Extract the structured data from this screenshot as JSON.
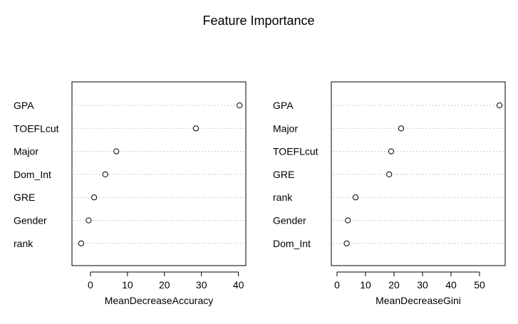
{
  "chart_data": {
    "title": "Feature Importance",
    "charts": [
      {
        "type": "scatter",
        "subtype": "dotchart",
        "xlabel": "MeanDecreaseAccuracy",
        "xlim": [
          -5,
          42
        ],
        "xticks": [
          0,
          10,
          20,
          30,
          40
        ],
        "tick_labels": [
          "0",
          "10",
          "20",
          "30",
          "40"
        ],
        "features": [
          "GPA",
          "TOEFLcut",
          "Major",
          "Dom_Int",
          "GRE",
          "Gender",
          "rank"
        ],
        "values": [
          40.3,
          28.5,
          7.0,
          4.0,
          1.0,
          -0.5,
          -2.5
        ]
      },
      {
        "type": "scatter",
        "subtype": "dotchart",
        "xlabel": "MeanDecreaseGini",
        "xlim": [
          -2,
          59
        ],
        "xticks": [
          0,
          10,
          20,
          30,
          40,
          50
        ],
        "tick_labels": [
          "0",
          "10",
          "20",
          "30",
          "40",
          "50"
        ],
        "features": [
          "GPA",
          "Major",
          "TOEFLcut",
          "GRE",
          "rank",
          "Gender",
          "Dom_Int"
        ],
        "values": [
          57.0,
          22.5,
          19.0,
          18.3,
          6.5,
          3.8,
          3.4
        ]
      }
    ],
    "grid": "dotted-horizontal",
    "point_style": "open-circle"
  }
}
